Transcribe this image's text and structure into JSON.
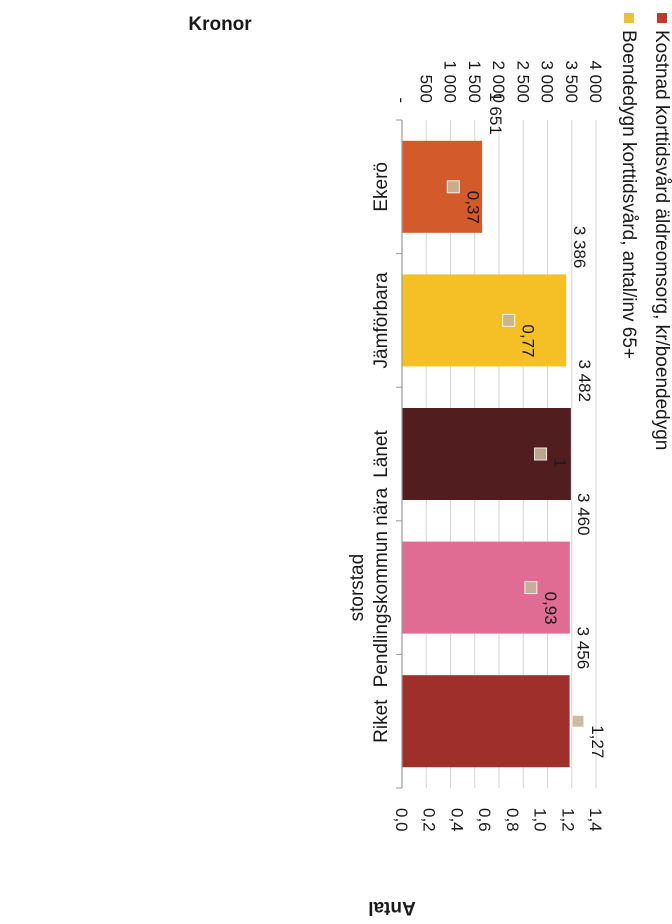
{
  "chart_data": {
    "type": "bar",
    "categories": [
      "Ekerö",
      "Jämförbara",
      "Länet",
      "Pendlingskommun nära storstad",
      "Riket"
    ],
    "category_lines": [
      [
        "Ekerö"
      ],
      [
        "Jämförbara"
      ],
      [
        "Länet"
      ],
      [
        "Pendlingskommun nära",
        "storstad"
      ],
      [
        "Riket"
      ]
    ],
    "series": [
      {
        "name": "Kostnad korttidsvård äldreomsorg, kr/boendedygn",
        "axis": "primary",
        "values": [
          1651,
          3386,
          3482,
          3460,
          3456
        ],
        "labels": [
          "1 651",
          "3 386",
          "3 482",
          "3 460",
          "3 456"
        ],
        "bar_colors": [
          "#d35a2a",
          "#f5c026",
          "#521d1f",
          "#e06b93",
          "#9e2f2b"
        ]
      },
      {
        "name": "Boendedygn korttidsvård, antal/inv 65+",
        "axis": "secondary",
        "values": [
          0.37,
          0.77,
          1.0,
          0.93,
          1.27
        ],
        "labels": [
          "0,37",
          "0,77",
          "1",
          "0,93",
          "1,27"
        ],
        "marker_color": "#c8b49a"
      }
    ],
    "primary_axis": {
      "title": "Kronor",
      "ylim": [
        0,
        4000
      ],
      "tick_values": [
        0,
        500,
        1000,
        1500,
        2000,
        2500,
        3000,
        3500,
        4000
      ],
      "tick_labels": [
        "-",
        "500",
        "1 000",
        "1 500",
        "2 000",
        "2 500",
        "3 000",
        "3 500",
        "4 000"
      ]
    },
    "secondary_axis": {
      "title": "Antal",
      "ylim": [
        0,
        1.4
      ],
      "tick_values": [
        0,
        0.2,
        0.4,
        0.6,
        0.8,
        1.0,
        1.2,
        1.4
      ],
      "tick_labels": [
        "0,0",
        "0,2",
        "0,4",
        "0,6",
        "0,8",
        "1,0",
        "1,2",
        "1,4"
      ]
    },
    "legend": {
      "placement": "right",
      "items": [
        {
          "label": "Kostnad korttidsvård äldreomsorg, kr/boendedygn",
          "color": "#c0392b"
        },
        {
          "label": "Boendedygn korttidsvård, antal/inv 65+",
          "color": "#e8c33a"
        }
      ]
    },
    "orientation": "rotated 90 degrees",
    "grid": true
  }
}
